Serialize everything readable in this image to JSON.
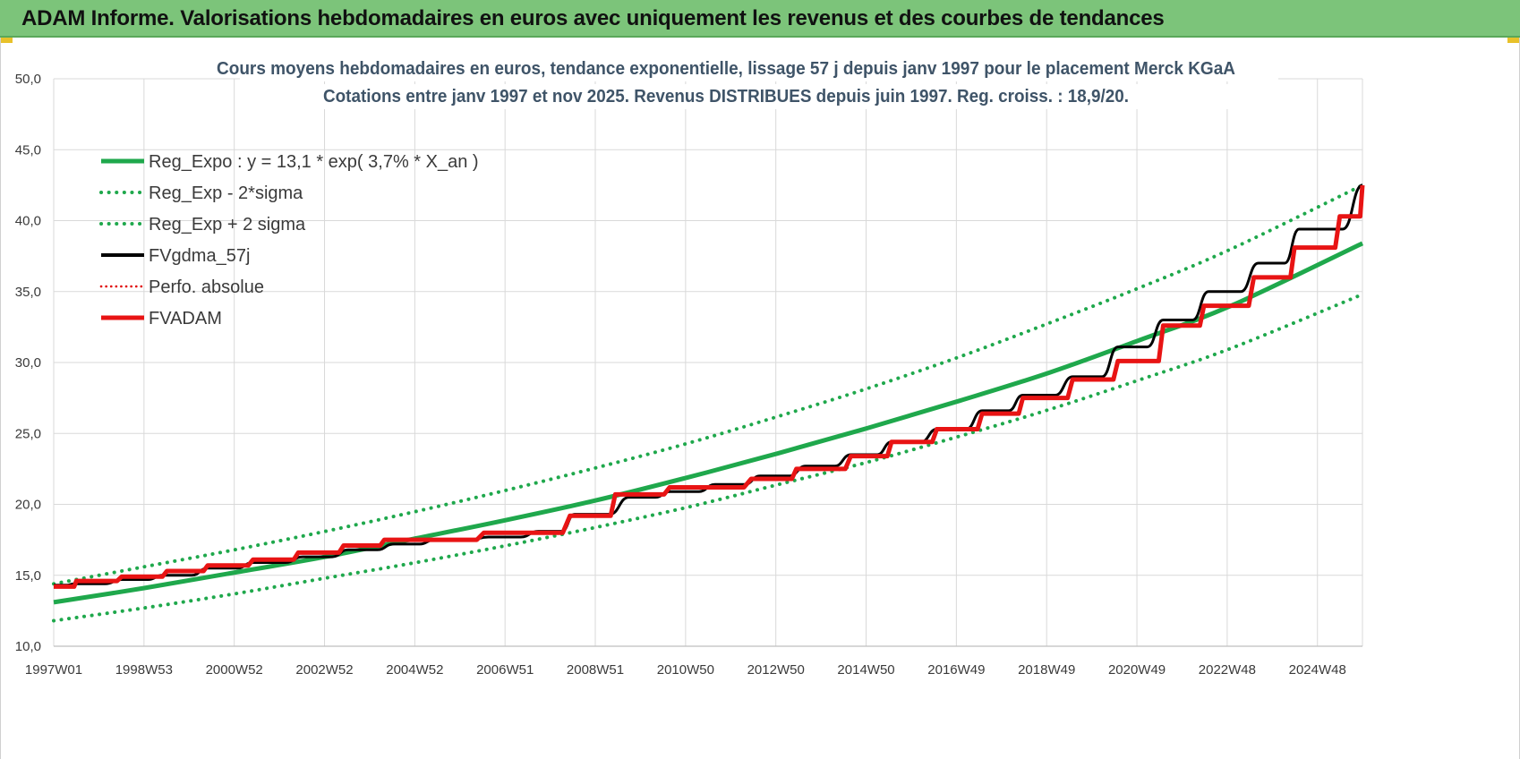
{
  "window": {
    "banner_title": "ADAM Informe. Valorisations hebdomadaires en euros avec uniquement les revenus et des courbes de tendances"
  },
  "colors": {
    "banner": "#7cc47a",
    "trend": "#1fa84c",
    "sigma": "#1fa84c",
    "fvgdma": "#000000",
    "perfo": "#e00000",
    "fvadam": "#e81414",
    "grid": "#d9d9d9"
  },
  "chart_data": {
    "type": "line",
    "title_lines": [
      "Cours moyens hebdomadaires en euros, tendance exponentielle, lissage 57 j depuis janv 1997  pour le placement Merck KGaA",
      "Cotations entre janv 1997 et nov 2025. Revenus DISTRIBUES depuis juin 1997. Reg. croiss. : 18,9/20."
    ],
    "x_ticks": [
      "1997W01",
      "1998W53",
      "2000W52",
      "2002W52",
      "2004W52",
      "2006W51",
      "2008W51",
      "2010W50",
      "2012W50",
      "2014W50",
      "2016W49",
      "2018W49",
      "2020W49",
      "2022W48",
      "2024W48"
    ],
    "x_range": [
      1997.0,
      2025.9
    ],
    "y_ticks": [
      "10,0",
      "15,0",
      "20,0",
      "25,0",
      "30,0",
      "35,0",
      "40,0",
      "45,0",
      "50,0"
    ],
    "ylim": [
      10,
      50
    ],
    "legend_position": "top-left",
    "grid": true,
    "series": [
      {
        "name": "Reg_Expo : y = 13,1 * exp( 3,7% *  X_an )",
        "style": "solid-thick",
        "color": "#1fa84c",
        "x": [
          1997.0,
          1999.0,
          2001.0,
          2003.0,
          2005.0,
          2007.0,
          2009.0,
          2011.0,
          2013.0,
          2015.0,
          2017.0,
          2019.0,
          2021.0,
          2023.0,
          2025.9
        ],
        "y": [
          13.1,
          14.1,
          15.2,
          16.3,
          17.6,
          18.9,
          20.3,
          21.9,
          23.6,
          25.4,
          27.3,
          29.3,
          31.6,
          34.0,
          38.4
        ]
      },
      {
        "name": "Reg_Exp - 2*sigma",
        "style": "dotted",
        "color": "#1fa84c",
        "x": [
          1997.0,
          1999.0,
          2001.0,
          2003.0,
          2005.0,
          2007.0,
          2009.0,
          2011.0,
          2013.0,
          2015.0,
          2017.0,
          2019.0,
          2021.0,
          2023.0,
          2025.9
        ],
        "y": [
          11.8,
          12.7,
          13.7,
          14.8,
          15.9,
          17.1,
          18.4,
          19.8,
          21.4,
          23.0,
          24.8,
          26.7,
          28.8,
          31.0,
          34.8
        ]
      },
      {
        "name": "Reg_Exp + 2 sigma",
        "style": "dotted",
        "color": "#1fa84c",
        "x": [
          1997.0,
          1999.0,
          2001.0,
          2003.0,
          2005.0,
          2007.0,
          2009.0,
          2011.0,
          2013.0,
          2015.0,
          2017.0,
          2019.0,
          2021.0,
          2023.0,
          2025.9
        ],
        "y": [
          14.4,
          15.6,
          16.8,
          18.1,
          19.5,
          21.0,
          22.6,
          24.3,
          26.2,
          28.2,
          30.4,
          32.8,
          35.3,
          38.0,
          42.5
        ]
      },
      {
        "name": "FVgdma_57j",
        "style": "solid",
        "color": "#000000",
        "x": [
          1997.0,
          1997.45,
          1998.5,
          1999.4,
          2000.4,
          2001.4,
          2002.5,
          2003.5,
          2004.5,
          2005.4,
          2006.6,
          2007.7,
          2008.5,
          2009.7,
          2010.6,
          2011.6,
          2012.6,
          2013.6,
          2014.6,
          2015.5,
          2016.5,
          2017.5,
          2018.4,
          2019.5,
          2020.5,
          2021.5,
          2022.5,
          2023.6,
          2024.5,
          2025.9
        ],
        "y": [
          14.3,
          14.4,
          14.7,
          15.0,
          15.5,
          15.9,
          16.3,
          16.8,
          17.2,
          17.5,
          17.7,
          18.1,
          19.3,
          20.5,
          20.9,
          21.4,
          22.0,
          22.7,
          23.5,
          24.4,
          25.3,
          26.6,
          27.7,
          29.0,
          31.1,
          33.0,
          35.0,
          37.0,
          39.4,
          42.5
        ]
      },
      {
        "name": "Perfo. absolue",
        "style": "dotted",
        "color": "#e00000",
        "x": [],
        "y": []
      },
      {
        "name": "FVADAM",
        "style": "step-thick",
        "color": "#e81414",
        "x": [
          1997.0,
          1997.5,
          1998.5,
          1999.5,
          2000.4,
          2001.4,
          2002.4,
          2003.4,
          2004.3,
          2006.5,
          2008.4,
          2009.4,
          2010.6,
          2012.4,
          2013.4,
          2014.6,
          2015.5,
          2016.5,
          2017.5,
          2018.4,
          2019.5,
          2020.5,
          2021.5,
          2022.4,
          2023.5,
          2024.4,
          2025.4,
          2025.9
        ],
        "y": [
          14.2,
          14.6,
          14.9,
          15.3,
          15.7,
          16.1,
          16.6,
          17.1,
          17.5,
          18.0,
          19.2,
          20.7,
          21.2,
          21.8,
          22.5,
          23.4,
          24.4,
          25.3,
          26.4,
          27.5,
          28.8,
          30.1,
          32.6,
          34.0,
          36.0,
          38.1,
          40.3,
          42.5
        ]
      }
    ]
  }
}
